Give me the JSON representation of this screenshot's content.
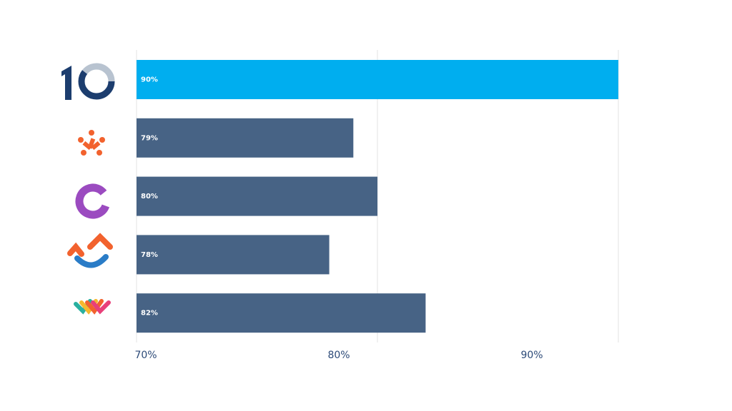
{
  "chart_data": {
    "type": "hbar",
    "categories": [
      null,
      null,
      null,
      null,
      null
    ],
    "values": [
      90,
      79,
      80,
      78,
      82
    ],
    "value_labels": [
      "90%",
      "79%",
      "80%",
      "78%",
      "82%"
    ],
    "colors": [
      "#00aeef",
      "#476385",
      "#476385",
      "#476385",
      "#476385"
    ],
    "xlim": [
      70,
      90
    ],
    "xticks": [
      {
        "value": 70,
        "label": "70%"
      },
      {
        "value": 80,
        "label": "80%"
      },
      {
        "value": 90,
        "label": "90%"
      }
    ],
    "grid": true
  }
}
